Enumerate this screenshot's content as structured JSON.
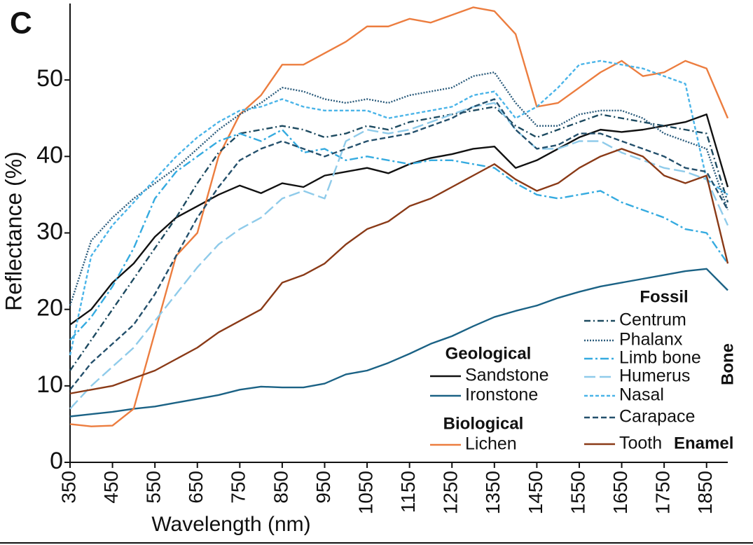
{
  "chart_data": {
    "type": "line",
    "panel_label": "C",
    "xlabel": "Wavelength (nm)",
    "ylabel": "Reflectance (%)",
    "xlim": [
      350,
      1900
    ],
    "ylim": [
      0,
      60
    ],
    "xticks": [
      350,
      450,
      550,
      650,
      750,
      850,
      950,
      1050,
      1150,
      1250,
      1350,
      1450,
      1550,
      1650,
      1750,
      1850
    ],
    "yticks": [
      0,
      10,
      20,
      30,
      40,
      50
    ],
    "x": [
      350,
      400,
      450,
      500,
      550,
      600,
      650,
      700,
      750,
      800,
      850,
      900,
      950,
      1000,
      1050,
      1100,
      1150,
      1200,
      1250,
      1300,
      1350,
      1400,
      1450,
      1500,
      1550,
      1600,
      1650,
      1700,
      1750,
      1800,
      1850,
      1900
    ],
    "series": [
      {
        "name": "Sandstone",
        "group": "Geological",
        "color": "#111111",
        "dash": "none",
        "values": [
          18,
          20,
          23.5,
          26,
          29.5,
          32,
          33.5,
          35,
          36.2,
          35.2,
          36.5,
          36,
          37.5,
          38,
          38.5,
          37.8,
          39,
          39.8,
          40.3,
          41,
          41.3,
          38.5,
          39.5,
          41,
          42.5,
          43.5,
          43.2,
          43.5,
          44,
          44.5,
          45.5,
          36
        ]
      },
      {
        "name": "Ironstone",
        "group": "Geological",
        "color": "#1b6285",
        "dash": "none",
        "values": [
          6,
          6.3,
          6.6,
          7,
          7.3,
          7.8,
          8.3,
          8.8,
          9.5,
          9.9,
          9.8,
          9.8,
          10.3,
          11.5,
          12,
          13,
          14.2,
          15.5,
          16.5,
          17.8,
          19,
          19.8,
          20.5,
          21.5,
          22.3,
          23,
          23.5,
          24,
          24.5,
          25,
          25.3,
          22.5
        ]
      },
      {
        "name": "Lichen",
        "group": "Biological",
        "color": "#ec7d3f",
        "dash": "none",
        "values": [
          5,
          4.7,
          4.8,
          7,
          17,
          27,
          30,
          40,
          45.5,
          48,
          52,
          52,
          53.5,
          55,
          57,
          57,
          58,
          57.5,
          58.5,
          59.5,
          59,
          56,
          46.5,
          47,
          49,
          51,
          52.5,
          50.5,
          51,
          52.5,
          51.5,
          45
        ]
      },
      {
        "name": "Centrum",
        "group": "Fossil",
        "subgroup": "Bone",
        "color": "#1d4a60",
        "dash": "9 4 2 4",
        "values": [
          12,
          16,
          20,
          24,
          28,
          32,
          36.5,
          40.5,
          43,
          43.5,
          44,
          43.5,
          42.5,
          43,
          44,
          43.5,
          44.5,
          45,
          45.5,
          46,
          46.5,
          44,
          42.5,
          43.5,
          44.5,
          45.5,
          45,
          44.5,
          44,
          43.5,
          43,
          34
        ]
      },
      {
        "name": "Phalanx",
        "group": "Fossil",
        "subgroup": "Bone",
        "color": "#2c5c7c",
        "dash": "2 2",
        "values": [
          20.5,
          29,
          32,
          34.5,
          36.5,
          38.5,
          41,
          43.5,
          45.5,
          47,
          49,
          48.5,
          47.5,
          47,
          47.5,
          47,
          48,
          48.5,
          49,
          50.5,
          51,
          47,
          44,
          44,
          45.5,
          46,
          46,
          45,
          43,
          42,
          41,
          33
        ]
      },
      {
        "name": "Limb bone",
        "group": "Fossil",
        "subgroup": "Bone",
        "color": "#35abe0",
        "dash": "12 4 3 4",
        "values": [
          16,
          19,
          23,
          28,
          34.5,
          38,
          40,
          42,
          43,
          42,
          43.5,
          40.5,
          41,
          39.5,
          40,
          39.5,
          39,
          39.5,
          39.5,
          39,
          38.5,
          36.5,
          35,
          34.5,
          35,
          35.5,
          34,
          33,
          32,
          30.5,
          30,
          26
        ]
      },
      {
        "name": "Humerus",
        "group": "Fossil",
        "subgroup": "Bone",
        "color": "#8fcbea",
        "dash": "16 6",
        "values": [
          7,
          10,
          12.5,
          15,
          18.5,
          22,
          25.5,
          28.5,
          30.5,
          32,
          34.5,
          35.5,
          34.5,
          42,
          43.5,
          43,
          43.5,
          44.5,
          45.5,
          46.5,
          47,
          43.5,
          41,
          41,
          42,
          42,
          40.5,
          39.5,
          38.5,
          38,
          37,
          31
        ]
      },
      {
        "name": "Nasal",
        "group": "Fossil",
        "subgroup": "Bone",
        "color": "#4ab4e8",
        "dash": "5 3",
        "values": [
          14,
          27,
          31,
          34,
          37,
          40,
          42.5,
          44.5,
          46,
          46.5,
          47.5,
          46.5,
          46,
          46,
          46,
          45,
          45.5,
          46,
          46.5,
          48,
          48.5,
          45,
          46.5,
          49,
          52,
          52.5,
          52,
          51.5,
          50.5,
          49.5,
          37,
          35
        ]
      },
      {
        "name": "Carapace",
        "group": "Fossil",
        "subgroup": "Bone",
        "color": "#24506c",
        "dash": "8 4",
        "values": [
          9.5,
          13,
          15.5,
          18,
          22,
          27,
          32,
          36,
          39.5,
          41,
          42,
          41,
          40,
          41,
          42,
          42.5,
          43,
          44,
          45,
          46.5,
          47.5,
          43.5,
          41,
          41.5,
          43,
          43,
          42,
          41,
          40,
          38.5,
          38,
          33
        ]
      },
      {
        "name": "Tooth",
        "group": "Fossil",
        "subgroup": "Enamel",
        "color": "#8a3a17",
        "dash": "none",
        "values": [
          9,
          9.5,
          10,
          11,
          12,
          13.5,
          15,
          17,
          18.5,
          20,
          23.5,
          24.5,
          26,
          28.5,
          30.5,
          31.5,
          33.5,
          34.5,
          36,
          37.5,
          39,
          37,
          35.5,
          36.5,
          38.5,
          40,
          41,
          40,
          37.5,
          36.5,
          37.5,
          26
        ]
      }
    ]
  }
}
